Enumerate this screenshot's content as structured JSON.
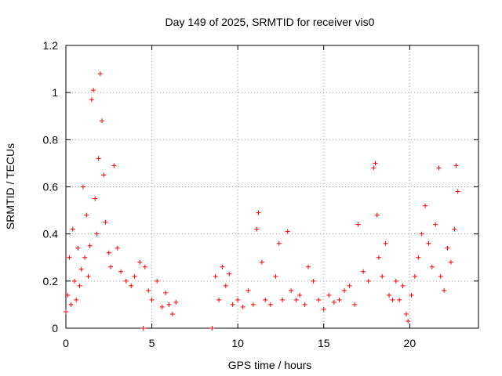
{
  "chart_data": {
    "type": "scatter",
    "title": "Day 149 of 2025, SRMTID for receiver vis0",
    "xlabel": "GPS time / hours",
    "ylabel": "SRMTID / TECUs",
    "xlim": [
      0,
      24
    ],
    "ylim": [
      0,
      1.2
    ],
    "grid": true,
    "marker": "+",
    "color": "#ff0000",
    "x_ticks": [
      0,
      5,
      10,
      15,
      20
    ],
    "x_tick_labels": [
      "0",
      "5",
      "10",
      "15",
      "20"
    ],
    "y_ticks": [
      0,
      0.2,
      0.4,
      0.6,
      0.8,
      1.0,
      1.2
    ],
    "y_tick_labels": [
      "0",
      "0.2",
      "0.4",
      "0.6",
      "0.8",
      "1",
      "1.2"
    ],
    "series": [
      {
        "name": "SRMTID",
        "points": [
          [
            0.0,
            0.07
          ],
          [
            0.1,
            0.14
          ],
          [
            0.2,
            0.3
          ],
          [
            0.3,
            0.1
          ],
          [
            0.4,
            0.42
          ],
          [
            0.5,
            0.2
          ],
          [
            0.6,
            0.12
          ],
          [
            0.7,
            0.34
          ],
          [
            0.8,
            0.18
          ],
          [
            0.9,
            0.25
          ],
          [
            1.0,
            0.6
          ],
          [
            1.1,
            0.3
          ],
          [
            1.2,
            0.48
          ],
          [
            1.3,
            0.22
          ],
          [
            1.4,
            0.35
          ],
          [
            1.5,
            0.97
          ],
          [
            1.6,
            1.01
          ],
          [
            1.7,
            0.55
          ],
          [
            1.8,
            0.4
          ],
          [
            1.9,
            0.72
          ],
          [
            2.0,
            1.08
          ],
          [
            2.1,
            0.88
          ],
          [
            2.2,
            0.65
          ],
          [
            2.3,
            0.45
          ],
          [
            2.5,
            0.32
          ],
          [
            2.6,
            0.26
          ],
          [
            2.8,
            0.69
          ],
          [
            3.0,
            0.34
          ],
          [
            3.2,
            0.24
          ],
          [
            3.5,
            0.2
          ],
          [
            3.8,
            0.18
          ],
          [
            4.0,
            0.22
          ],
          [
            4.3,
            0.28
          ],
          [
            4.5,
            0.0
          ],
          [
            4.6,
            0.26
          ],
          [
            4.8,
            0.16
          ],
          [
            5.0,
            0.12
          ],
          [
            5.3,
            0.2
          ],
          [
            5.6,
            0.09
          ],
          [
            5.8,
            0.15
          ],
          [
            6.0,
            0.1
          ],
          [
            6.2,
            0.06
          ],
          [
            6.4,
            0.11
          ],
          [
            8.5,
            0.0
          ],
          [
            8.7,
            0.22
          ],
          [
            8.9,
            0.12
          ],
          [
            9.1,
            0.26
          ],
          [
            9.3,
            0.18
          ],
          [
            9.5,
            0.23
          ],
          [
            9.7,
            0.1
          ],
          [
            10.0,
            0.12
          ],
          [
            10.3,
            0.09
          ],
          [
            10.6,
            0.16
          ],
          [
            10.9,
            0.1
          ],
          [
            11.1,
            0.42
          ],
          [
            11.2,
            0.49
          ],
          [
            11.4,
            0.28
          ],
          [
            11.6,
            0.12
          ],
          [
            11.9,
            0.1
          ],
          [
            12.2,
            0.22
          ],
          [
            12.4,
            0.36
          ],
          [
            12.6,
            0.12
          ],
          [
            12.9,
            0.41
          ],
          [
            13.1,
            0.16
          ],
          [
            13.4,
            0.12
          ],
          [
            13.6,
            0.14
          ],
          [
            13.9,
            0.1
          ],
          [
            14.1,
            0.26
          ],
          [
            14.4,
            0.2
          ],
          [
            14.7,
            0.12
          ],
          [
            15.0,
            0.08
          ],
          [
            15.3,
            0.14
          ],
          [
            15.6,
            0.11
          ],
          [
            15.9,
            0.12
          ],
          [
            16.2,
            0.16
          ],
          [
            16.5,
            0.18
          ],
          [
            16.8,
            0.1
          ],
          [
            17.0,
            0.44
          ],
          [
            17.3,
            0.24
          ],
          [
            17.6,
            0.2
          ],
          [
            17.9,
            0.68
          ],
          [
            18.0,
            0.7
          ],
          [
            18.1,
            0.48
          ],
          [
            18.2,
            0.3
          ],
          [
            18.4,
            0.22
          ],
          [
            18.6,
            0.36
          ],
          [
            18.8,
            0.14
          ],
          [
            19.0,
            0.12
          ],
          [
            19.2,
            0.2
          ],
          [
            19.4,
            0.12
          ],
          [
            19.6,
            0.18
          ],
          [
            19.8,
            0.06
          ],
          [
            19.9,
            0.03
          ],
          [
            20.1,
            0.14
          ],
          [
            20.3,
            0.22
          ],
          [
            20.5,
            0.3
          ],
          [
            20.7,
            0.4
          ],
          [
            20.9,
            0.52
          ],
          [
            21.1,
            0.36
          ],
          [
            21.3,
            0.26
          ],
          [
            21.5,
            0.44
          ],
          [
            21.7,
            0.68
          ],
          [
            21.8,
            0.22
          ],
          [
            22.0,
            0.16
          ],
          [
            22.2,
            0.34
          ],
          [
            22.4,
            0.28
          ],
          [
            22.6,
            0.42
          ],
          [
            22.7,
            0.69
          ],
          [
            22.8,
            0.58
          ]
        ]
      }
    ]
  }
}
